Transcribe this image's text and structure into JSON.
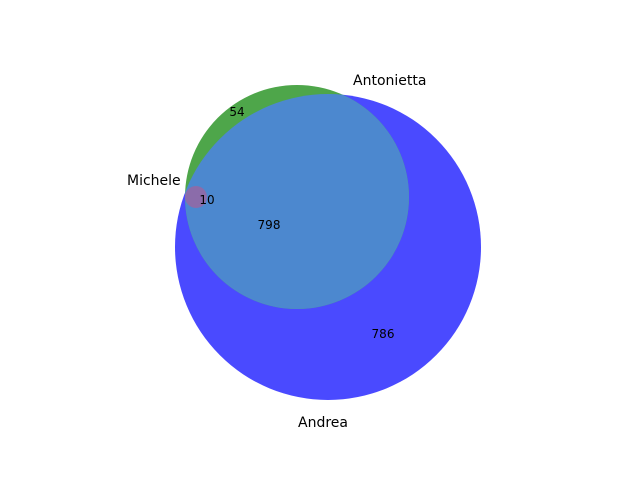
{
  "diagram": {
    "type": "venn3",
    "sets": [
      {
        "name": "Andrea",
        "color": "#0000ff"
      },
      {
        "name": "Antonietta",
        "color": "#008000"
      },
      {
        "name": "Michele",
        "color": "#ff0000"
      }
    ],
    "regions": [
      {
        "id": "andrea_only",
        "value": "786"
      },
      {
        "id": "antonietta_only",
        "value": "54"
      },
      {
        "id": "andrea_antonietta",
        "value": "798"
      },
      {
        "id": "andrea_antonietta_michele",
        "value": "10"
      }
    ]
  }
}
